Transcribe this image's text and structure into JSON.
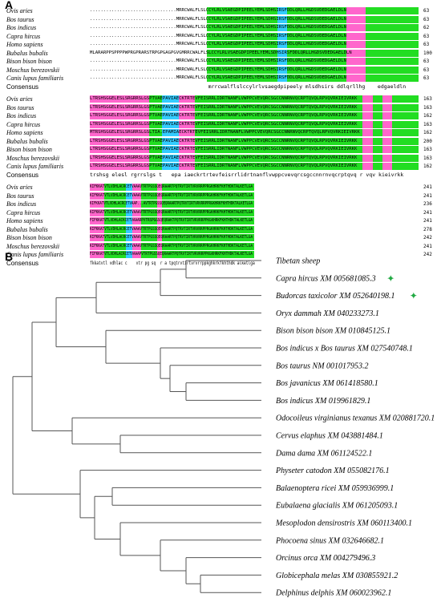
{
  "panel_a_label": "A",
  "panel_b_label": "B",
  "alignment_blocks": [
    {
      "rows": [
        {
          "species": "Ovis aries",
          "seq": "................................MRRCWALFLSLCCYLRLVSAEGDPIPEELYEMLSDHSIRSFDDLQRLLHGDSVDEDGAELDLN",
          "end": "63"
        },
        {
          "species": "Bos taurus",
          "seq": "................................MRRCWALFLSLCCYLRLVSAEGDPIPEELYEMLSDHSIRSFDDLQRLLHGDSVDEDGAELDLN",
          "end": "63"
        },
        {
          "species": "Bos indicus",
          "seq": "................................MRRCWALFLSLCCYLRLVSAEGDPIPEELYEMLSDHSIRSFDDLQRLLHGDSVDEDGAELDLN",
          "end": "62"
        },
        {
          "species": "Capra hircus",
          "seq": "................................MRRCWALFLSLCCYLRLVSAEGDPIPEELYEMLSDHSIRSFDDLQRLLHGDSVDEDGAELDLN",
          "end": "63"
        },
        {
          "species": "Homo sapiens",
          "seq": "................................MRRCWALFLSLCCYLRLVSAEGDPIPEELYEMLSDHSIRSFDDLQRLLHGDSVDEDGAELDLN",
          "end": "63"
        },
        {
          "species": "Bubalus bubalis",
          "seq": "MLARARPPSPPPPWPRGPRARSTRPGPGAGPGVGMRRCWALFLSLCCYLRLVSAEGDPIPEELYEMLSDHSIRSFDDLQRLLHGDSVDEDGAELDLN",
          "end": "100"
        },
        {
          "species": "Bison bison bison",
          "seq": "................................MRRCWALFLSLCCYLRLVSAEGDPIPEELYEMLSDHSIRSFDDLQRLLHGDSVDEDGAELDLN",
          "end": "63"
        },
        {
          "species": "Moschus berezovskii",
          "seq": "................................MRRCWALFLSLCCYLRLVSAEGDPIPEELYEMLSDHSIRSFDDLQRLLHGDSVDEDGAELDLN",
          "end": "63"
        },
        {
          "species": "Canis lupus familiaris",
          "seq": "................................MRRCWALFLSLCCYLRLVSAEGDPIPEELYEMLSDHSIRSFDDLQRLLHGDSVDEDGAELDLN",
          "end": "63"
        }
      ],
      "consensus_label": "Consensus",
      "consensus": "mrrcwalflslccylrlvsaegdpipeely mlsdhsirs ddlqrllhg    edgaeldln"
    },
    {
      "rows": [
        {
          "species": "Ovis aries",
          "seq": "LTRSHSGGELESLSRGRRSLGSPTVAEPAVIAECKTRTEVFEISRRLIDRTNANFLVWPPCVEVQRCSGCCNNRNVQCRPTQVQLRPVQVRKIEIVRKK",
          "end": "163"
        },
        {
          "species": "Bos taurus",
          "seq": "LTRSHSGGELESLSRGRRSLGSPTVAEPAVIAECKTRTEVFEISRRLIDRTNANFLVWPPCVEVQRCSGCCNNRNVQCRPTQVQLRPVQVRKIEIVRKK",
          "end": "163"
        },
        {
          "species": "Bos indicus",
          "seq": "LTRSHSGGELESLSRGRRSLGSPTVAEPAVIAECKTRTEVFEISRRLIDRTNANFLVWPPCVEVQRCSGCCNNRNVQCRPTQVQLRPVQVRKIEIVRKK",
          "end": "162"
        },
        {
          "species": "Capra hircus",
          "seq": "LTRSHSGGELESLSRGRRSLGSPTVAEPAVIAECKTRTEVFEISRRLIDRTNANFLVWPPCVEVQRCSGCCNNRNVQCRPTQVQLRPVQVRKIEIVRKK",
          "end": "163"
        },
        {
          "species": "Homo sapiens",
          "seq": "MTRSHSGGELESLSRGRRSLGSLTIA.EPAMIAECKTRTEVFEISRRLIDRTNANFLVWPPCVEVQRCSGCCNNRNVQCRPTQVQLRPVQVRKIEIVRKK",
          "end": "162"
        },
        {
          "species": "Bubalus bubalis",
          "seq": "LTRSHSGGELESLSRGRRSLGSPTVAEPAVIAECKTRTEVFEISRRLIDRTNANFLVWPPCVEVQRCSGCCNNRNVQCRPTQVQLRPVQVRKIEIVRKK",
          "end": "200"
        },
        {
          "species": "Bison bison bison",
          "seq": "LTRSHSGGELESLSRGRRSLGSPTVAEPAVIAECKTRTEVFEISRRLIDRTNANFLVWPPCVEVQRCSGCCNNRNVQCRPTQVQLRPVQVRKIEIVRKK",
          "end": "163"
        },
        {
          "species": "Moschus berezovskii",
          "seq": "LTRSHSGGELESLSRGRRSLGSPTVAEPAVIAECKTRTEVFEISRRLIDRTNANFLVWPPCVEVQRCSGCCNNRNVQCRPTQVQLRPVQVRKIEIVRKK",
          "end": "163"
        },
        {
          "species": "Canis lupus familiaris",
          "seq": "LTRSHSGGELESLSRGRRSLGSPTVAEPAVIAECKTRTEVFEISRRLIDRTNANFLVWPPCVEVQRCSGCCNNRNVQCRPTQVQLRPVQVRKIEIVRKK",
          "end": "162"
        }
      ],
      "consensus_label": "Consensus",
      "consensus": "trshsg elesl rgrrslgs t   epa iaeckrtrtevfeisrrlidrtnanflvwppcvevqrcsgccnnrnvqcrptqvq r vqv kieivrkk"
    },
    {
      "rows": [
        {
          "species": "Ovis aries",
          "seq": "KIFKKATVTLVDHLACRCETVAAAVTRTPGSSQEQRAARTPQTRVTIRTVRVRRPPRGKHRKFKHTHDKTALKETLGA",
          "end": "241"
        },
        {
          "species": "Bos taurus",
          "seq": "KIFKKATVTLVDHLACRCETVAAAVTRTPGSSQEQRAARTPQTRVTIRTVRVRRPPRGKHRKFKHTHDKTALKETLGA",
          "end": "241"
        },
        {
          "species": "Bos indicus",
          "seq": "KIFKKATVTLVDHLACRCETVAAP...AVTRTPGSSQEQRAARTPQTRVTIRTVRVRRPPRGKHRKFKHTHDKTALKETLGA",
          "end": "236"
        },
        {
          "species": "Capra hircus",
          "seq": "KIFKKATVTLVDHLACRCETVAAAVTRTPGSSQEQRAARTPQTRVTIRTVRVRRPPRGKHRKFKHTHDKTALKETLGA",
          "end": "241"
        },
        {
          "species": "Homo sapiens",
          "seq": "FIFKKATVTLVDHLACKCETVAAARPVTRSPGGSQEQRAKTPQTRVTIRTVRVRRPPKGKHRKFKHTHDKTALKETLGA",
          "end": "241"
        },
        {
          "species": "Bubalus bubalis",
          "seq": "KIFKKATVTLVDHLACRCETVAAAVTRTPGSSQEQRAARTPQTRVTIRTVRVRRPPRGKHRKFKHTHDKTALKETLGA",
          "end": "278"
        },
        {
          "species": "Bison bison bison",
          "seq": "KIFKKATVTLVDHLACRCETVAAAVTRTPGSSQEQRAARTPQTRVTIRTVRVRRPPRGKHRKFKHTHDKTALKETLGA",
          "end": "242"
        },
        {
          "species": "Moschus berezovskii",
          "seq": "KIFKKATVTLVDHLACRCETVAAAVTRTPGSSQEQRAARTPQTRVTIRTVRVRRPPRGKHRKFKHTHDKTALKETLGA",
          "end": "241"
        },
        {
          "species": "Canis lupus familiaris",
          "seq": "FIFKKATVTLVDHLACRCETVAAAPVTRTPGSSQEQRAARTPQTRVTIRTVRVRRPPKGKHRKFKHTHDKTALKETLGA",
          "end": "242"
        }
      ],
      "consensus_label": "Consensus",
      "consensus": "fkkatvtl vdhlac c    vtr pg sq  r a tpqtrvtirtvrvrrppkghkrkfkhthdk alketlga"
    }
  ],
  "colors": {
    "identical": "#22dd22",
    "similar": "#ff66cc",
    "weak": "#33ccff",
    "tibetan_label": "#e8182c",
    "star": "#22aa44",
    "branch": "#555555"
  },
  "tree": {
    "leaves": [
      {
        "label": "Tibetan sheep",
        "highlight": true,
        "star": false
      },
      {
        "label": "Capra hircus XM 005681085.3",
        "highlight": false,
        "star": true
      },
      {
        "label": "Budorcas taxicolor XM 052640198.1",
        "highlight": false,
        "star": true
      },
      {
        "label": "Oryx dammah XM 040233273.1",
        "highlight": false,
        "star": false
      },
      {
        "label": "Bison bison bison XM 010845125.1",
        "highlight": false,
        "star": false
      },
      {
        "label": "Bos indicus x Bos taurus XM 027540748.1",
        "highlight": false,
        "star": false
      },
      {
        "label": "Bos taurus NM 001017953.2",
        "highlight": false,
        "star": false
      },
      {
        "label": "Bos javanicus XM 061418580.1",
        "highlight": false,
        "star": false
      },
      {
        "label": "Bos indicus XM 019961829.1",
        "highlight": false,
        "star": false
      },
      {
        "label": "Odocoileus virginianus texanus XM 020881720.1",
        "highlight": false,
        "star": false
      },
      {
        "label": "Cervus elaphus XM 043881484.1",
        "highlight": false,
        "star": false
      },
      {
        "label": "Dama dama XM 061124522.1",
        "highlight": false,
        "star": false
      },
      {
        "label": "Physeter catodon XM 055082176.1",
        "highlight": false,
        "star": false
      },
      {
        "label": "Balaenoptera ricei XM 059936999.1",
        "highlight": false,
        "star": false
      },
      {
        "label": "Eubalaena glacialis XM 061205093.1",
        "highlight": false,
        "star": false
      },
      {
        "label": "Mesoplodon densirostris XM 060113400.1",
        "highlight": false,
        "star": false
      },
      {
        "label": "Phocoena sinus XM 032646682.1",
        "highlight": false,
        "star": false
      },
      {
        "label": "Orcinus orca XM 004279496.3",
        "highlight": false,
        "star": false
      },
      {
        "label": "Globicephala melas XM 030855921.2",
        "highlight": false,
        "star": false
      },
      {
        "label": "Delphinus delphis XM 060023962.1",
        "highlight": false,
        "star": false
      }
    ]
  }
}
